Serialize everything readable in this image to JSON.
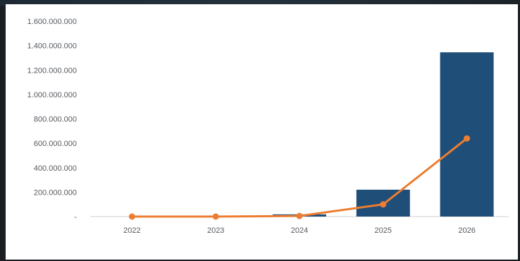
{
  "chart_data": {
    "type": "bar+line",
    "categories": [
      "2022",
      "2023",
      "2024",
      "2025",
      "2026"
    ],
    "series": [
      {
        "kind": "bar",
        "values": [
          0,
          0,
          18000000,
          220000000,
          1345000000
        ]
      },
      {
        "kind": "line",
        "values": [
          0,
          0,
          5000000,
          100000000,
          640000000
        ]
      }
    ],
    "y_ticks": [
      "-",
      "200.000.000",
      "400.000.000",
      "600.000.000",
      "800.000.000",
      "1.000.000.000",
      "1.200.000.000",
      "1.400.000.000",
      "1.600.000.000"
    ],
    "ylim": [
      0,
      1600000000
    ],
    "grid": false,
    "colors": {
      "bar": "#1f4e79",
      "line": "#ed7d31",
      "axis": "#d0d0d0",
      "frame": "#1a1d22"
    }
  }
}
